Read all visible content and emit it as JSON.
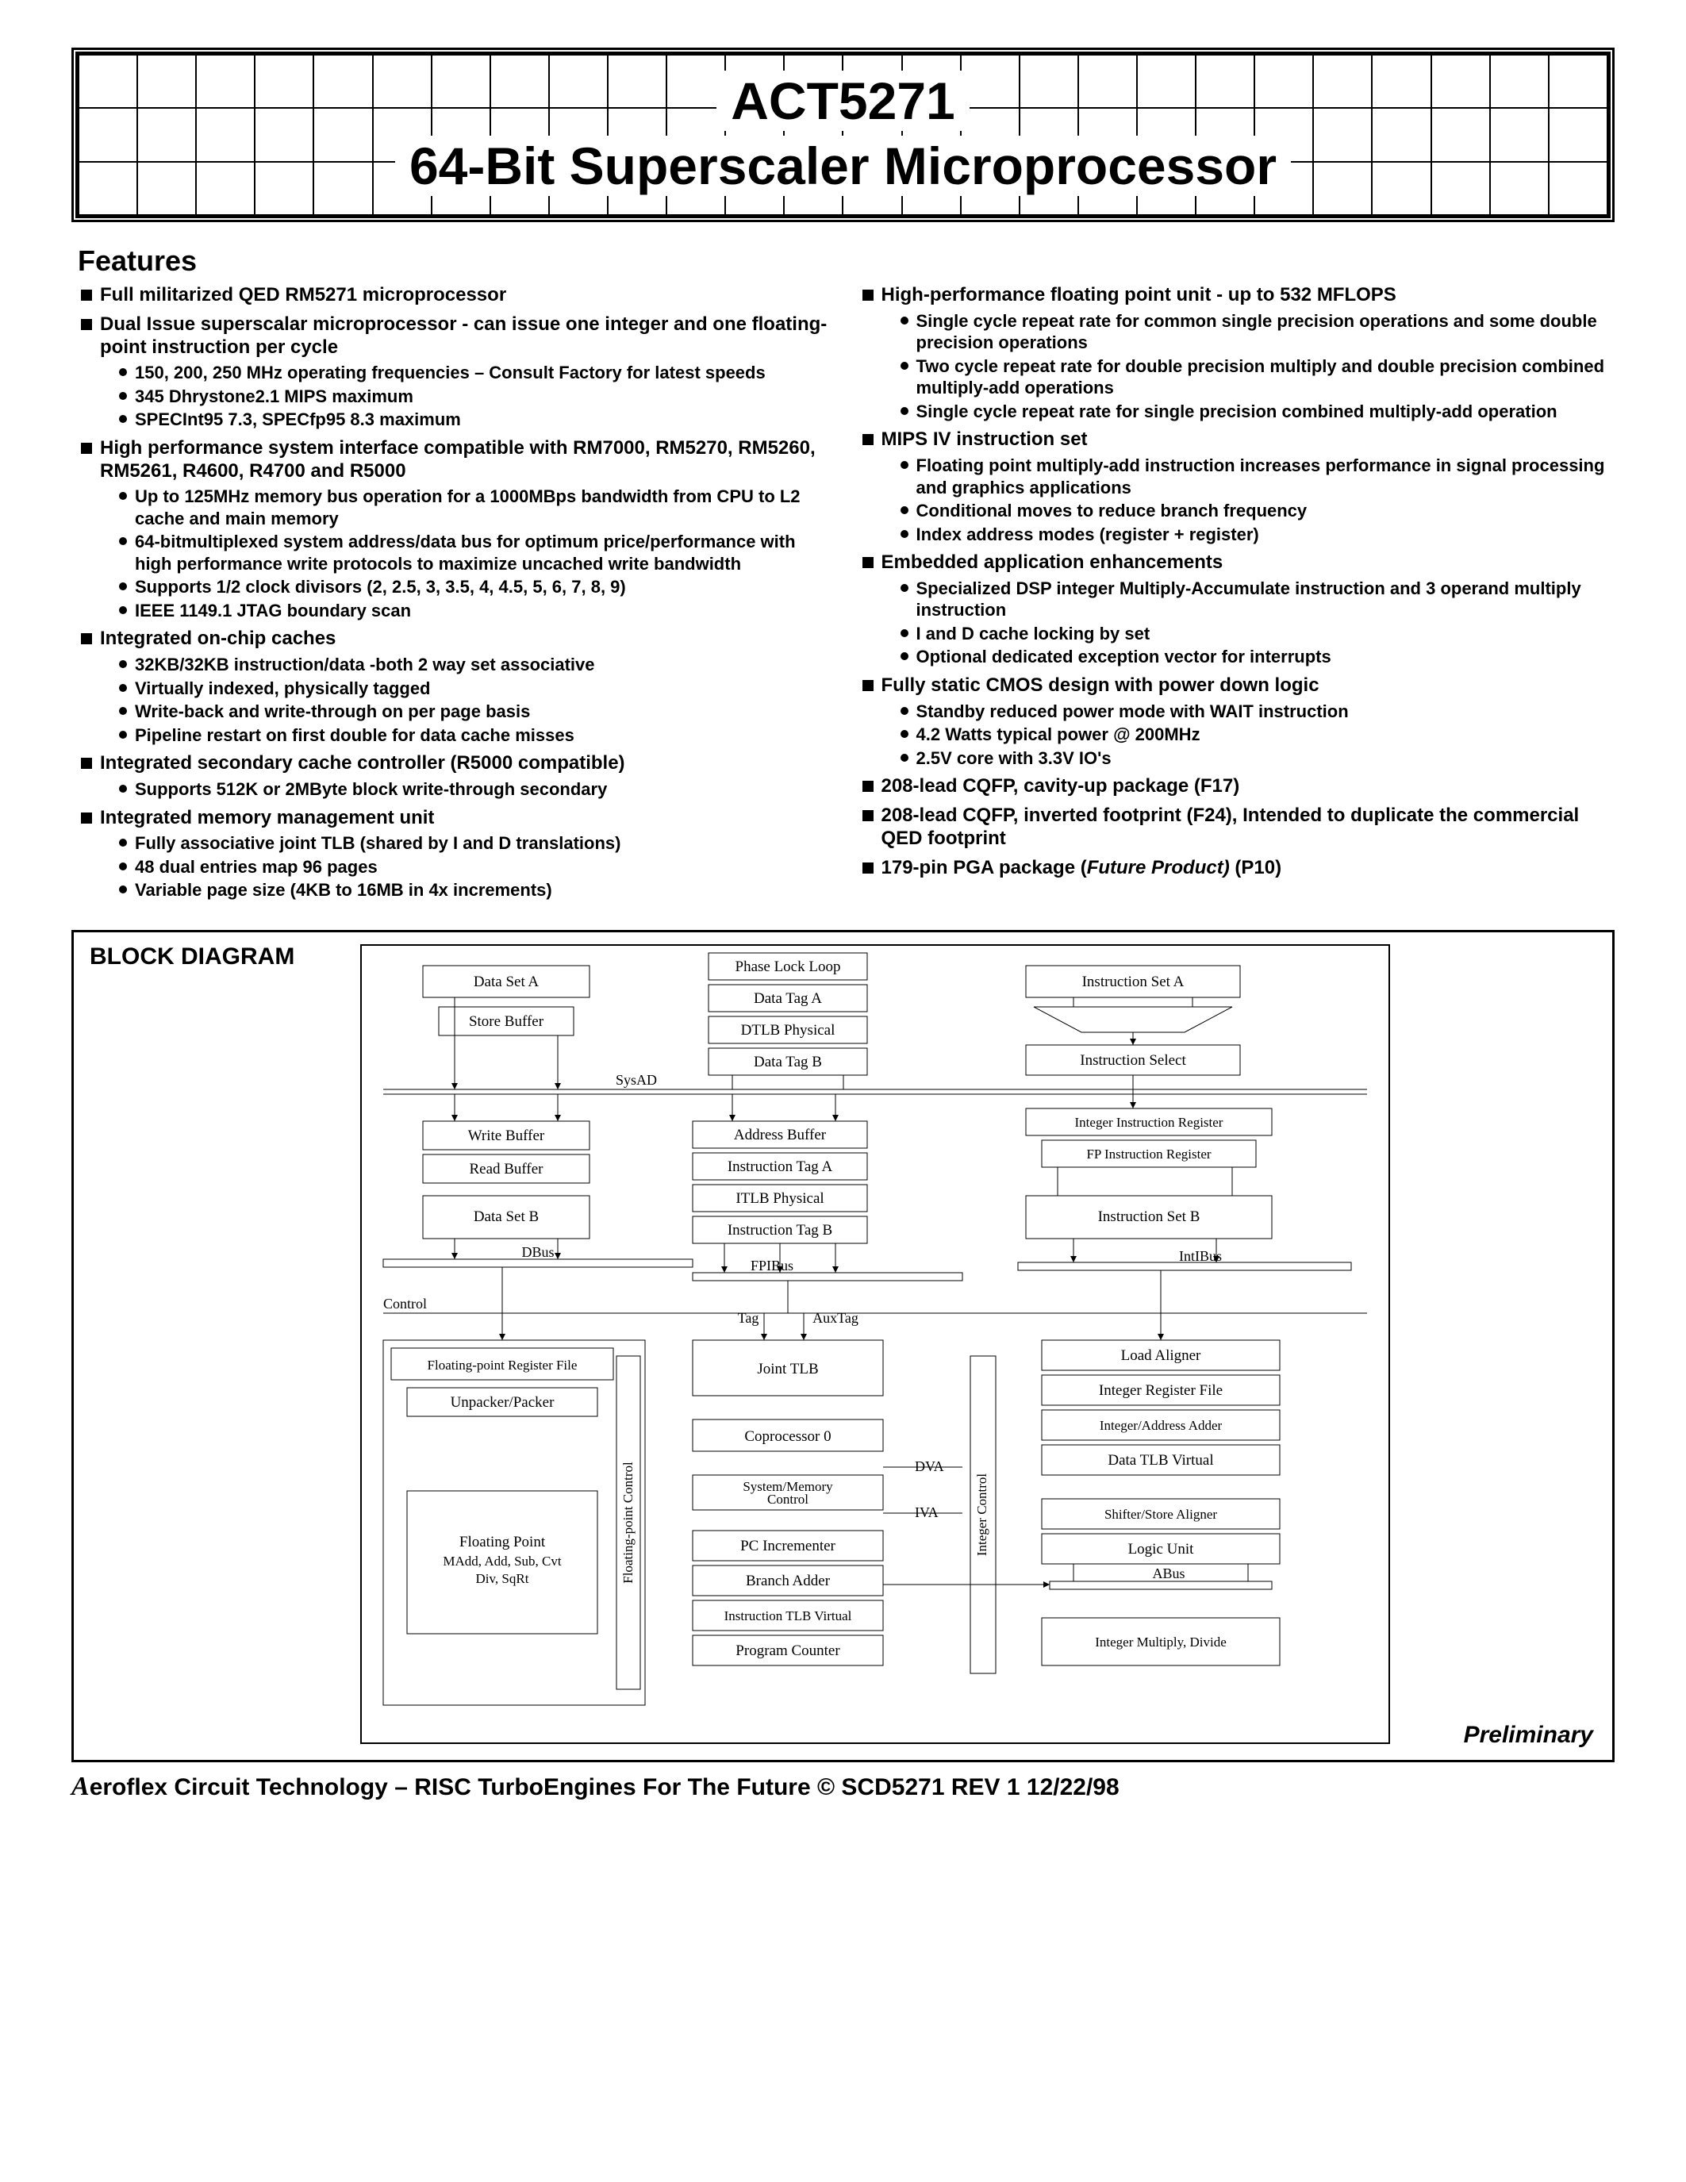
{
  "title": {
    "line1": "ACT5271",
    "line2": "64-Bit Superscaler Microprocessor"
  },
  "features_heading": "Features",
  "left_features": [
    {
      "text": "Full militarized QED  RM5271 microprocessor",
      "sub": []
    },
    {
      "text": "Dual Issue superscalar microprocessor - can issue one integer and one floating-point instruction per cycle",
      "sub": [
        "150, 200, 250 MHz operating frequencies – Consult Factory for latest speeds",
        "345 Dhrystone2.1 MIPS maximum",
        "SPECInt95 7.3, SPECfp95 8.3 maximum"
      ]
    },
    {
      "text": "High performance system interface compatible with RM7000, RM5270, RM5260, RM5261, R4600, R4700 and R5000",
      "sub": [
        "Up to 125MHz memory bus operation for a 1000MBps bandwidth from CPU to L2 cache and main memory",
        "64-bitmultiplexed system address/data bus for optimum price/performance with high performance write protocols to maximize uncached write bandwidth",
        "Supports 1/2 clock divisors (2, 2.5, 3, 3.5, 4, 4.5, 5, 6, 7, 8, 9)",
        "IEEE 1149.1 JTAG boundary scan"
      ]
    },
    {
      "text": "Integrated on-chip caches",
      "sub": [
        "32KB/32KB instruction/data -both 2 way set associative",
        "Virtually indexed, physically tagged",
        "Write-back and write-through on per page basis",
        "Pipeline restart on first double for data cache misses"
      ]
    },
    {
      "text": "Integrated secondary cache controller (R5000 compatible)",
      "sub": [
        "Supports 512K or 2MByte block write-through secondary"
      ]
    },
    {
      "text": "Integrated memory management unit",
      "sub": [
        "Fully associative joint TLB (shared by I and D translations)",
        "48 dual entries map 96 pages",
        "Variable page size (4KB to 16MB in 4x increments)"
      ]
    }
  ],
  "right_features": [
    {
      "text": "High-performance floating point unit - up to 532 MFLOPS",
      "sub": [
        "Single cycle repeat rate for common single precision operations and some double precision operations",
        "Two cycle repeat rate for double precision multiply and double precision combined multiply-add operations",
        "Single cycle repeat rate for single precision combined multiply-add operation"
      ]
    },
    {
      "text": "MIPS IV instruction set",
      "sub": [
        "Floating point multiply-add instruction increases performance in signal processing and graphics applications",
        "Conditional moves to reduce branch frequency",
        "Index address modes (register + register)"
      ]
    },
    {
      "text": "Embedded application enhancements",
      "sub": [
        "Specialized DSP integer Multiply-Accumulate instruction and 3 operand multiply instruction",
        "I and D cache locking by set",
        "Optional dedicated exception vector for interrupts"
      ]
    },
    {
      "text": "Fully static CMOS design with power down logic",
      "sub": [
        "Standby reduced power mode with WAIT instruction",
        "4.2 Watts typical power @ 200MHz",
        "2.5V core with 3.3V IO's"
      ]
    },
    {
      "text": "208-lead CQFP, cavity-up package (F17)",
      "sub": []
    },
    {
      "text": "208-lead CQFP, inverted footprint (F24), Intended to duplicate the commercial QED footprint",
      "sub": []
    },
    {
      "text": "179-pin PGA package (Future Product) (P10)",
      "sub": [],
      "italic_part": "Future Product)"
    }
  ],
  "block_diagram_heading": "BLOCK DIAGRAM",
  "preliminary": "Preliminary",
  "footer": "Aeroflex Circuit Technology  – RISC TurboEngines For The Future © SCD5271 REV 1  12/22/98",
  "diagram": {
    "boxes": {
      "data_set_a": "Data Set A",
      "store_buffer": "Store Buffer",
      "phase_lock_loop": "Phase Lock Loop",
      "data_tag_a": "Data Tag A",
      "dtlb_physical": "DTLB Physical",
      "data_tag_b": "Data Tag B",
      "instruction_set_a": "Instruction Set A",
      "instruction_select": "Instruction Select",
      "write_buffer": "Write Buffer",
      "read_buffer": "Read Buffer",
      "data_set_b": "Data Set B",
      "address_buffer": "Address Buffer",
      "instr_tag_a": "Instruction Tag A",
      "itlb_physical": "ITLB Physical",
      "instr_tag_b": "Instruction Tag B",
      "int_instr_reg": "Integer Instruction Register",
      "fp_instr_reg": "FP Instruction Register",
      "instruction_set_b": "Instruction Set B",
      "fp_reg_file": "Floating-point Register File",
      "unpacker": "Unpacker/Packer",
      "floating_point": "Floating Point",
      "madd": "MAdd, Add, Sub, Cvt",
      "div": "Div, SqRt",
      "fp_control": "Floating-point Control",
      "joint_tlb": "Joint TLB",
      "coprocessor0": "Coprocessor 0",
      "sys_mem": "System/Memory",
      "sys_mem2": "Control",
      "pc_incrementer": "PC Incrementer",
      "branch_adder": "Branch Adder",
      "instr_tlb_virtual": "Instruction TLB Virtual",
      "program_counter": "Program Counter",
      "integer_control": "Integer Control",
      "load_aligner": "Load Aligner",
      "integer_reg_file": "Integer Register File",
      "integer_addr_adder": "Integer/Address Adder",
      "data_tlb_virtual": "Data TLB Virtual",
      "shifter_store": "Shifter/Store Aligner",
      "logic_unit": "Logic Unit",
      "integer_mult": "Integer Multiply, Divide"
    },
    "labels": {
      "sysad": "SysAD",
      "dbus": "DBus",
      "fpibus": "FPIBus",
      "intibus": "IntIBus",
      "control": "Control",
      "tag": "Tag",
      "auxtag": "AuxTag",
      "dva": "DVA",
      "iva": "IVA",
      "abus": "ABus"
    }
  }
}
